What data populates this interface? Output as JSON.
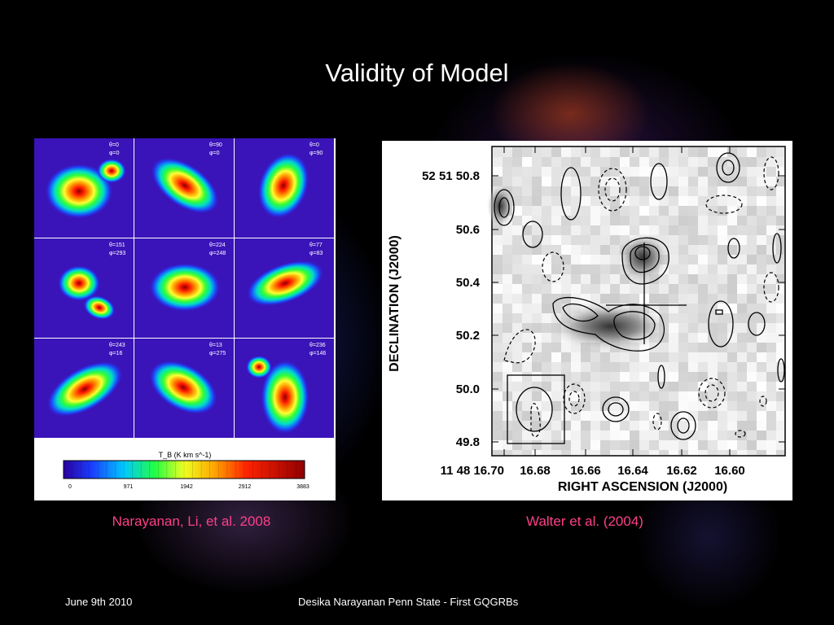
{
  "slide": {
    "title": "Validity of Model",
    "footer_date": "June 9th 2010",
    "footer_center": "Desika Narayanan   Penn State - First GQGRBs"
  },
  "left_figure": {
    "caption": "Narayanan, Li, et al. 2008",
    "panel_labels": [
      [
        "θ=0",
        "φ=0"
      ],
      [
        "θ=90",
        "φ=0"
      ],
      [
        "θ=0",
        "φ=90"
      ],
      [
        "θ=151",
        "φ=293"
      ],
      [
        "θ=224",
        "φ=248"
      ],
      [
        "θ=77",
        "φ=83"
      ],
      [
        "θ=243",
        "φ=16"
      ],
      [
        "θ=13",
        "φ=275"
      ],
      [
        "θ=236",
        "φ=146"
      ]
    ],
    "colorbar_label": "T_B (K km s^-1)",
    "colorbar_ticks": [
      "0",
      "971",
      "1942",
      "2912",
      "3883"
    ]
  },
  "right_figure": {
    "caption": "Walter et al. (2004)",
    "y_axis_title": "DECLINATION (J2000)",
    "x_axis_title": "RIGHT ASCENSION (J2000)",
    "y_ticks": [
      "52 51 50.8",
      "50.6",
      "50.4",
      "50.2",
      "50.0",
      "49.8"
    ],
    "x_ticks": [
      "11 48 16.70",
      "16.68",
      "16.66",
      "16.64",
      "16.62",
      "16.60"
    ]
  }
}
